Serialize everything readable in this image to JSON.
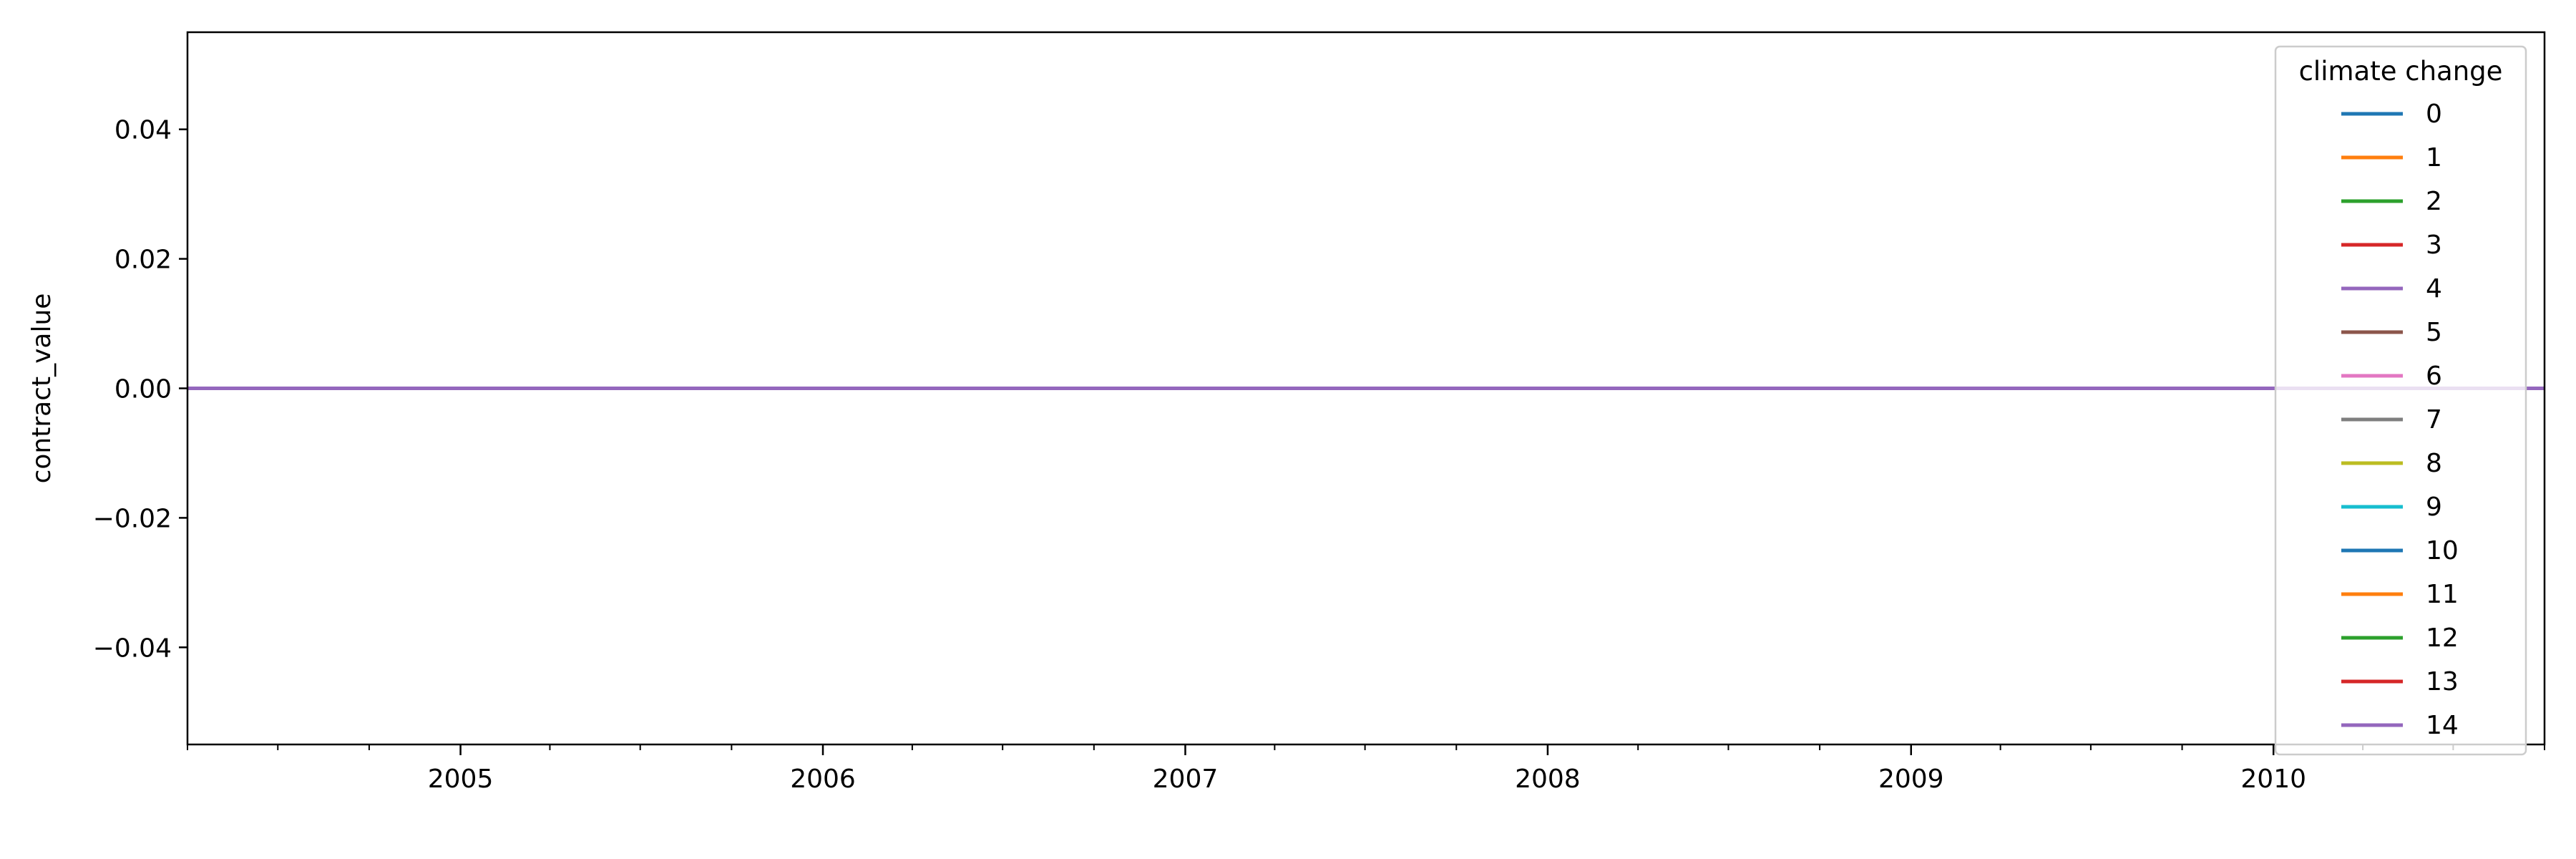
{
  "chart_data": {
    "type": "line",
    "title": "",
    "xlabel": "",
    "ylabel": "contract_value",
    "x_range": [
      "2004-04-01",
      "2010-10-01"
    ],
    "ylim": [
      -0.055,
      0.055
    ],
    "y_ticks": [
      -0.04,
      -0.02,
      0.0,
      0.02,
      0.04
    ],
    "y_tick_labels": [
      "−0.04",
      "−0.02",
      "0.00",
      "0.02",
      "0.04"
    ],
    "x_tick_labels": [
      "2005",
      "2006",
      "2007",
      "2008",
      "2009",
      "2010"
    ],
    "grid": false,
    "legend": {
      "title": "climate change",
      "placement": "upper right"
    },
    "series": [
      {
        "name": "0",
        "color": "#1f77b4",
        "x": [
          "2004-04-01",
          "2010-10-01"
        ],
        "values": [
          0,
          0
        ]
      },
      {
        "name": "1",
        "color": "#ff7f0e",
        "x": [
          "2004-04-01",
          "2010-10-01"
        ],
        "values": [
          0,
          0
        ]
      },
      {
        "name": "2",
        "color": "#2ca02c",
        "x": [
          "2004-04-01",
          "2010-10-01"
        ],
        "values": [
          0,
          0
        ]
      },
      {
        "name": "3",
        "color": "#d62728",
        "x": [
          "2004-04-01",
          "2010-10-01"
        ],
        "values": [
          0,
          0
        ]
      },
      {
        "name": "4",
        "color": "#9467bd",
        "x": [
          "2004-04-01",
          "2010-10-01"
        ],
        "values": [
          0,
          0
        ]
      },
      {
        "name": "5",
        "color": "#8c564b",
        "x": [
          "2004-04-01",
          "2010-10-01"
        ],
        "values": [
          0,
          0
        ]
      },
      {
        "name": "6",
        "color": "#e377c2",
        "x": [
          "2004-04-01",
          "2010-10-01"
        ],
        "values": [
          0,
          0
        ]
      },
      {
        "name": "7",
        "color": "#7f7f7f",
        "x": [
          "2004-04-01",
          "2010-10-01"
        ],
        "values": [
          0,
          0
        ]
      },
      {
        "name": "8",
        "color": "#bcbd22",
        "x": [
          "2004-04-01",
          "2010-10-01"
        ],
        "values": [
          0,
          0
        ]
      },
      {
        "name": "9",
        "color": "#17becf",
        "x": [
          "2004-04-01",
          "2010-10-01"
        ],
        "values": [
          0,
          0
        ]
      },
      {
        "name": "10",
        "color": "#1f77b4",
        "x": [
          "2004-04-01",
          "2010-10-01"
        ],
        "values": [
          0,
          0
        ]
      },
      {
        "name": "11",
        "color": "#ff7f0e",
        "x": [
          "2004-04-01",
          "2010-10-01"
        ],
        "values": [
          0,
          0
        ]
      },
      {
        "name": "12",
        "color": "#2ca02c",
        "x": [
          "2004-04-01",
          "2010-10-01"
        ],
        "values": [
          0,
          0
        ]
      },
      {
        "name": "13",
        "color": "#d62728",
        "x": [
          "2004-04-01",
          "2010-10-01"
        ],
        "values": [
          0,
          0
        ]
      },
      {
        "name": "14",
        "color": "#9467bd",
        "x": [
          "2004-04-01",
          "2010-10-01"
        ],
        "values": [
          0,
          0
        ]
      }
    ]
  }
}
